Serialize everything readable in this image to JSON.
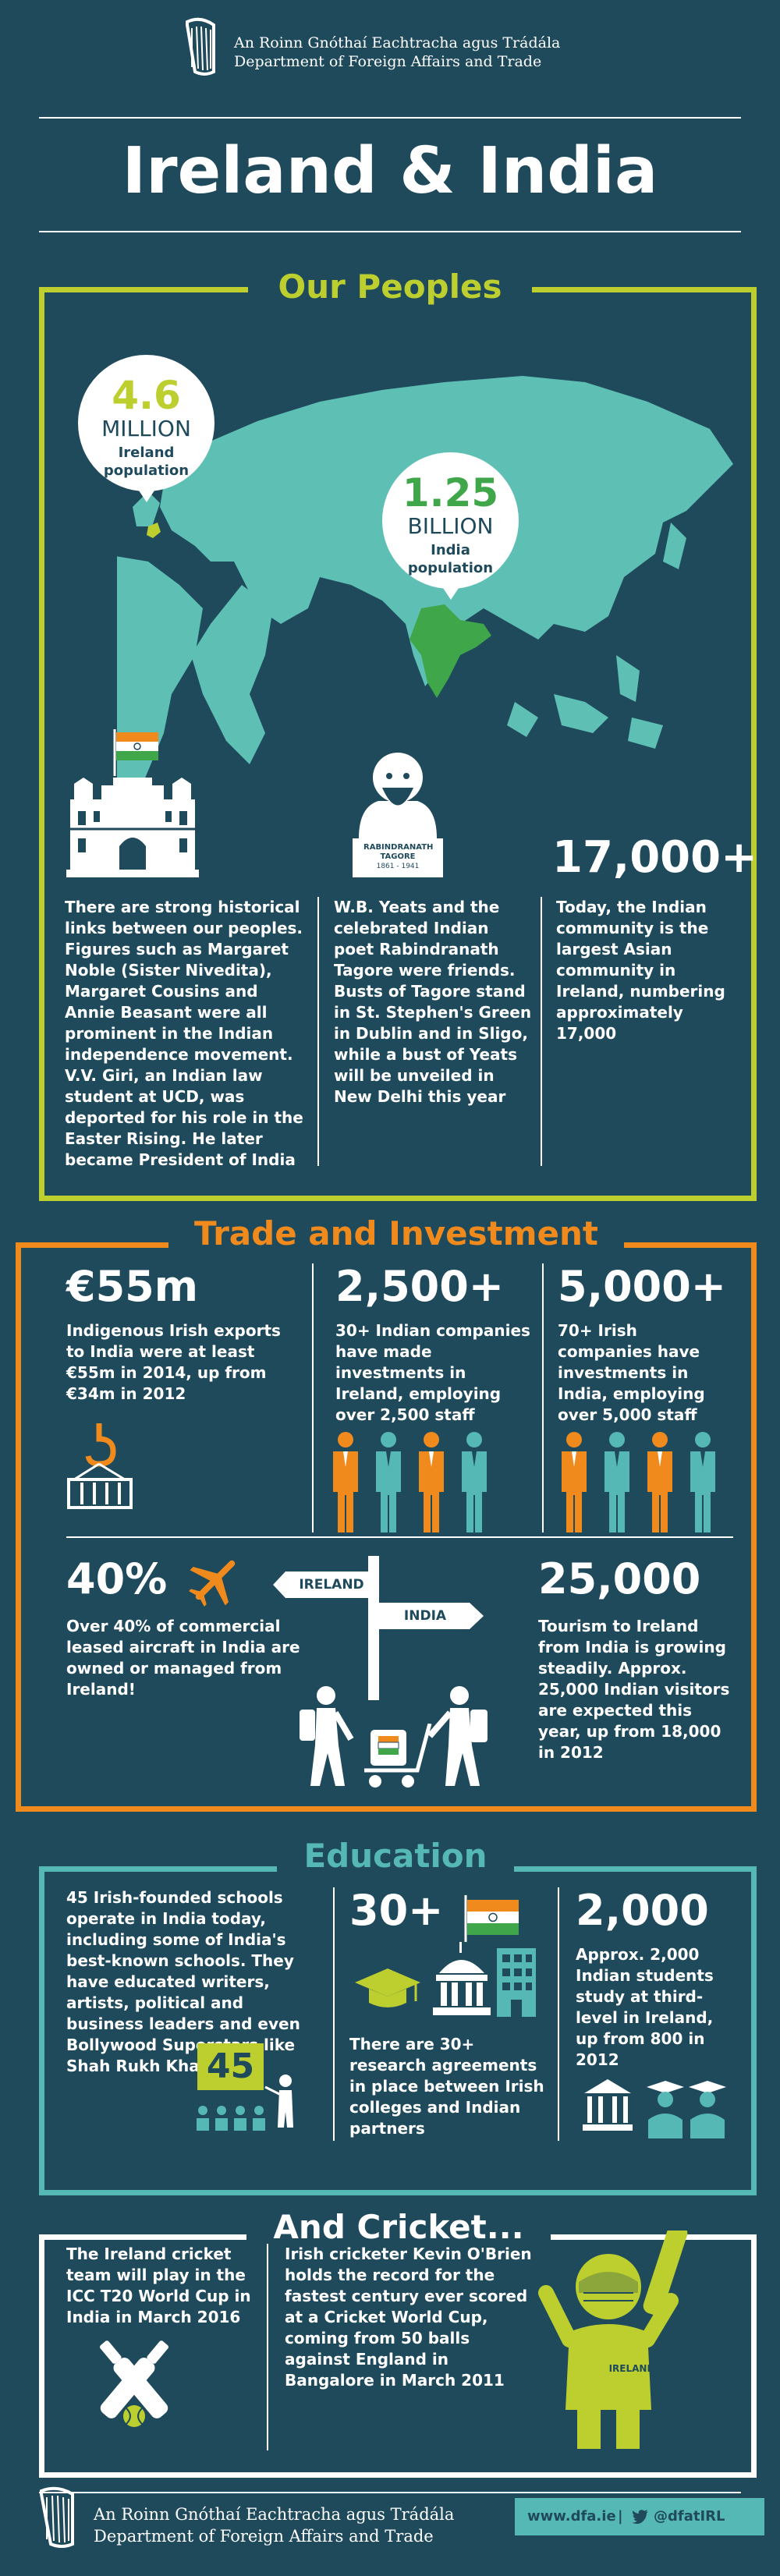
{
  "header": {
    "dept_irish": "An Roinn Gnóthaí Eachtracha agus Trádála",
    "dept_english": "Department of Foreign Affairs and Trade",
    "main_title": "Ireland & India"
  },
  "colors": {
    "background": "#1f4a5c",
    "green": "#bccf2e",
    "orange": "#f08a1c",
    "teal": "#55b8b4",
    "map": "#5ec0b4"
  },
  "peoples": {
    "title": "Our Peoples",
    "ireland_value": "4.6",
    "ireland_unit": "MILLION",
    "ireland_label": "Ireland population",
    "india_value": "1.25",
    "india_unit": "BILLION",
    "india_label": "India population",
    "tagore_plaque_name": "RABINDRANATH TAGORE",
    "tagore_plaque_years": "1861 - 1941",
    "col1_text": "There are strong historical links between our peoples. Figures such as Margaret Noble (Sister Nivedita), Margaret Cousins and Annie Beasant were all prominent in the Indian independence movement. V.V. Giri, an Indian law student at UCD, was deported for his role in the Easter Rising. He later became President of India",
    "col2_text": "W.B. Yeats and the celebrated Indian poet Rabindranath Tagore were friends. Busts of Tagore stand in St. Stephen's Green in Dublin and in Sligo, while a bust of Yeats will be unveiled in  New Delhi this year",
    "col3_number": "17,000+",
    "col3_text": "Today, the Indian community is the largest Asian community in Ireland, numbering approximately 17,000"
  },
  "trade": {
    "title": "Trade and Investment",
    "exports_value": "€55m",
    "exports_text": "Indigenous Irish exports to India were at least €55m in 2014, up from €34m in 2012",
    "indian_cos_value": "2,500+",
    "indian_cos_text": "30+ Indian companies have made investments in Ireland, employing over 2,500 staff",
    "irish_cos_value": "5,000+",
    "irish_cos_text": "70+ Irish companies have investments in India, employing over 5,000 staff",
    "aircraft_value": "40%",
    "aircraft_text": "Over 40% of commercial leased aircraft in India are owned or managed from Ireland!",
    "sign_ireland": "IRELAND",
    "sign_india": "INDIA",
    "tourism_value": "25,000",
    "tourism_text": "Tourism to Ireland from India is growing steadily. Approx. 25,000 Indian visitors are expected this year, up from 18,000 in 2012"
  },
  "education": {
    "title": "Education",
    "schools_text": "45 Irish-founded schools operate in India today, including some of India's best-known schools. They have educated writers, artists, political and business leaders and even Bollywood Superstars like Shah Rukh Khan!",
    "board_number": "45",
    "research_value": "30+",
    "research_text": "There are 30+ research agreements in place between Irish colleges and Indian partners",
    "students_value": "2,000",
    "students_text": "Approx. 2,000 Indian students study at third-level in Ireland, up from 800 in 2012"
  },
  "cricket": {
    "title": "And Cricket...",
    "col1_text": "The Ireland cricket team will play in the ICC T20 World Cup in India in March 2016",
    "col2_text": "Irish cricketer Kevin O'Brien holds the record for the fastest century ever scored at a Cricket World Cup, coming from 50 balls against England in Bangalore in March 2011",
    "jersey_text": "IRELAND"
  },
  "footer": {
    "dept_irish": "An Roinn Gnóthaí Eachtracha agus Trádála",
    "dept_english": "Department of Foreign Affairs and Trade",
    "website": "www.dfa.ie",
    "separator": "|",
    "twitter": "@dfatIRL"
  }
}
